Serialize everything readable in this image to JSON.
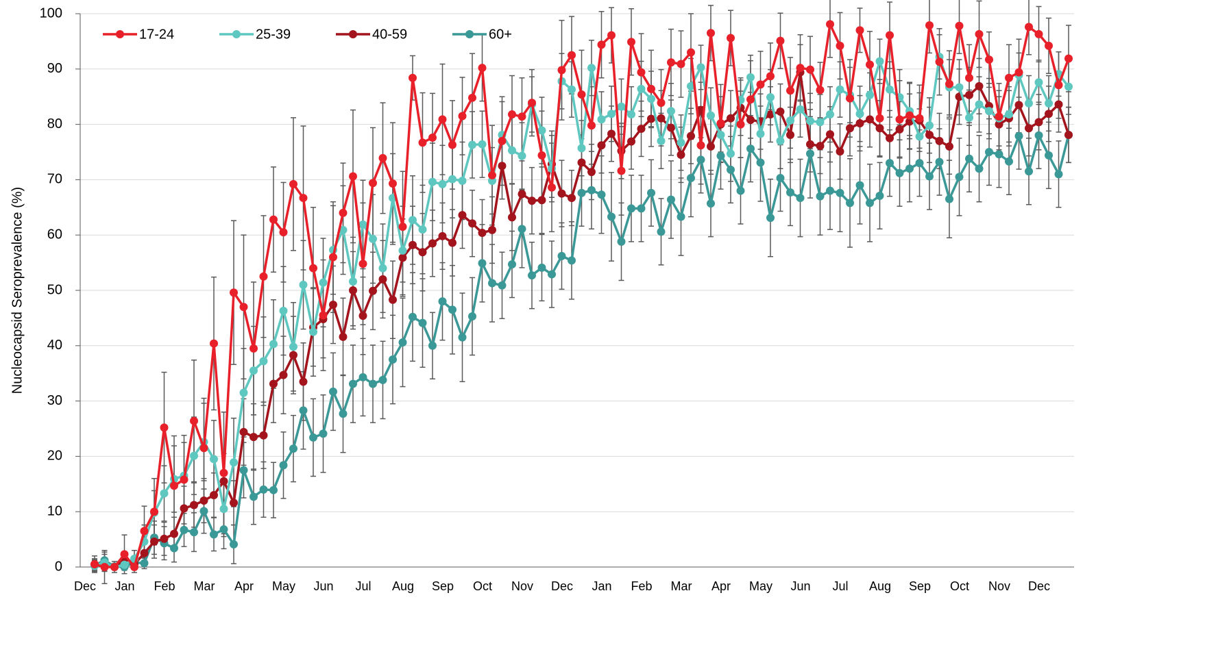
{
  "chart_data": {
    "type": "line",
    "ylabel": "Nucleocapsid Seroprevalence (%)",
    "ylim": [
      0,
      100
    ],
    "yticks": [
      0,
      10,
      20,
      30,
      40,
      50,
      60,
      70,
      80,
      90,
      100
    ],
    "grid": true,
    "legend": "top-left",
    "errorbar_color": "#595959",
    "categories": [
      "Dec",
      null,
      null,
      null,
      "Jan",
      null,
      null,
      null,
      "Feb",
      null,
      null,
      null,
      "Mar",
      null,
      null,
      null,
      "Apr",
      null,
      null,
      null,
      "May",
      null,
      null,
      null,
      "Jun",
      null,
      null,
      null,
      "Jul",
      null,
      null,
      null,
      "Aug",
      null,
      null,
      null,
      "Sep",
      null,
      null,
      null,
      "Oct",
      null,
      null,
      null,
      "Nov",
      null,
      null,
      null,
      "Dec",
      null,
      null,
      null,
      "Jan",
      null,
      null,
      null,
      "Feb",
      null,
      null,
      null,
      "Mar",
      null,
      null,
      null,
      "Apr",
      null,
      null,
      null,
      "May",
      null,
      null,
      null,
      "Jun",
      null,
      null,
      null,
      "Jul",
      null,
      null,
      null,
      "Aug",
      null,
      null,
      null,
      "Sep",
      null,
      null,
      null,
      "Oct",
      null,
      null,
      null,
      "Nov",
      null,
      null,
      null,
      "Dec",
      null,
      null
    ],
    "series": [
      {
        "name": "17-24",
        "color": "#e8202a",
        "values": [
          0.5,
          0,
          0,
          2.3,
          0,
          6.5,
          10,
          25.2,
          14.7,
          15.8,
          26.4,
          21.5,
          40.4,
          17,
          49.6,
          47,
          39.5,
          52.5,
          62.8,
          60.5,
          69.2,
          66.7,
          54,
          45.5,
          56,
          64,
          70.6,
          54.8,
          69.4,
          73.9,
          69.3,
          61.5,
          88.4,
          76.7,
          77.6,
          80.9,
          76.3,
          81.5,
          84.8,
          90.2,
          70.8,
          77,
          81.8,
          81.4,
          83.9,
          74.4,
          68.6,
          89.8,
          92.5,
          85.4,
          79.8,
          94.4,
          96.1,
          71.6,
          94.9,
          89.4,
          86.4,
          83.9,
          91.2,
          90.9,
          93,
          76.2,
          96.5,
          80.2,
          95.6,
          80,
          84.5,
          87.2,
          88.7,
          95.1,
          86.1,
          90.2,
          89.9,
          86.2,
          98.1,
          94.2,
          84.7,
          97,
          90.8,
          81.1,
          96.1,
          80.9,
          81.6,
          81.1,
          97.9,
          91.3,
          87.3,
          97.8,
          88.4,
          96.3,
          91.7,
          81.4,
          88.4,
          89.4,
          97.6,
          96.3,
          94.2,
          87.1,
          91.9
        ],
        "errors": [
          1.5,
          3,
          1,
          3.5,
          1,
          4.5,
          6,
          10,
          9,
          8,
          11,
          9,
          12,
          11,
          13,
          13,
          12,
          11,
          9.5,
          9,
          12,
          13,
          11,
          10,
          10,
          9,
          12,
          11,
          10,
          10,
          11,
          10,
          4,
          9,
          8,
          10,
          8,
          7,
          8,
          6,
          9,
          8,
          7,
          7,
          6,
          8,
          8,
          9,
          7,
          8,
          7,
          6,
          5,
          8,
          6,
          7,
          7,
          6,
          6,
          6,
          7,
          7,
          5,
          7,
          5,
          6,
          7,
          6,
          6,
          5,
          6,
          6,
          6,
          5,
          6,
          6,
          7,
          4,
          6,
          7,
          6,
          7,
          6,
          6,
          5,
          6,
          6,
          5,
          6,
          6,
          5,
          6,
          6,
          6,
          5,
          5,
          5,
          6,
          6
        ]
      },
      {
        "name": "25-39",
        "color": "#5ec8c0",
        "values": [
          0.2,
          0.8,
          0,
          0.4,
          1.5,
          4.6,
          9.8,
          13.3,
          15.9,
          16.5,
          20.1,
          22.6,
          19.5,
          10.5,
          18.9,
          31.5,
          35.5,
          37.2,
          40.3,
          46.3,
          39.8,
          51,
          42.5,
          51.4,
          57.3,
          60.9,
          51.6,
          61.9,
          59.3,
          54,
          66.7,
          57.2,
          62.7,
          61,
          69.6,
          69.2,
          70.1,
          69.8,
          76.3,
          76.4,
          69.8,
          78.1,
          75.3,
          74.3,
          83.6,
          78.9,
          72,
          87.8,
          86.3,
          75.7,
          90.2,
          80.9,
          81.9,
          83.2,
          81.8,
          86.4,
          84.6,
          77,
          82.4,
          76.7,
          86.9,
          90.3,
          81.6,
          78.1,
          74.7,
          84.4,
          88.5,
          78.3,
          84.9,
          77,
          80.7,
          82.7,
          80.6,
          80.4,
          81.8,
          86.3,
          85.3,
          81.9,
          85.3,
          91.4,
          86.3,
          84.9,
          82.4,
          77.8,
          79.8,
          92.2,
          86.7,
          86.7,
          81.2,
          83.6,
          82.4,
          81.1,
          81.8,
          88.9,
          83.8,
          87.6,
          83.8,
          89.1,
          86.8
        ],
        "errors": [
          1,
          1.5,
          0.5,
          1,
          1.5,
          3,
          4,
          5,
          6,
          6,
          7,
          7,
          7,
          5,
          8,
          8,
          8,
          8,
          8,
          8,
          8,
          8,
          8,
          8,
          8,
          8,
          8,
          8,
          8,
          8,
          8,
          8,
          8,
          8,
          7,
          7,
          7,
          7,
          6,
          6,
          6,
          6,
          6,
          6,
          5,
          6,
          6,
          5,
          5,
          5,
          5,
          5,
          5,
          5,
          5,
          5,
          5,
          5,
          5,
          5,
          5,
          4,
          5,
          5,
          5,
          4,
          4,
          5,
          5,
          5,
          5,
          5,
          5,
          5,
          5,
          5,
          5,
          5,
          4,
          4,
          5,
          5,
          5,
          5,
          5,
          4,
          5,
          5,
          5,
          5,
          5,
          5,
          5,
          4,
          5,
          4,
          5,
          4,
          5
        ]
      },
      {
        "name": "40-59",
        "color": "#a3141d",
        "values": [
          0.5,
          0.2,
          0,
          1.2,
          0.5,
          2.5,
          4.6,
          5.1,
          6,
          10.6,
          11.2,
          12,
          13,
          15.5,
          11.6,
          24.4,
          23.5,
          23.8,
          33.1,
          34.7,
          38.3,
          33.5,
          43.3,
          44.8,
          47.4,
          41.6,
          50,
          45.4,
          49.9,
          52,
          48.3,
          55.9,
          58.2,
          56.9,
          58.5,
          59.8,
          58.6,
          63.6,
          62.1,
          60.4,
          60.9,
          72.5,
          63.2,
          67.4,
          66.2,
          66.3,
          72.8,
          67.5,
          66.7,
          73.1,
          71.4,
          76.2,
          78.3,
          75.2,
          76.9,
          79.2,
          81,
          81.1,
          79.4,
          74.5,
          77.9,
          82.6,
          76,
          80,
          81.1,
          83,
          80.8,
          80.5,
          81.8,
          82.3,
          78.1,
          89.4,
          76.4,
          76.1,
          78.2,
          75.1,
          79.3,
          80.2,
          80.9,
          79.3,
          77.5,
          79.1,
          80.5,
          80.7,
          78.1,
          77,
          76,
          85,
          85.3,
          86.9,
          83.3,
          80,
          81.1,
          83.5,
          79.3,
          80.4,
          81.9,
          83.6,
          78.1
        ],
        "errors": [
          1,
          1,
          0.5,
          1,
          1,
          2,
          3,
          3,
          3,
          4,
          4,
          4,
          4,
          5,
          4,
          6,
          6,
          6,
          7,
          7,
          7,
          7,
          7,
          7,
          7,
          7,
          7,
          7,
          7,
          7,
          7,
          7,
          7,
          7,
          6,
          6,
          6,
          6,
          6,
          6,
          6,
          6,
          6,
          6,
          6,
          6,
          6,
          6,
          5,
          5,
          5,
          5,
          5,
          5,
          5,
          5,
          5,
          5,
          5,
          5,
          5,
          5,
          5,
          5,
          5,
          5,
          5,
          5,
          5,
          5,
          5,
          5,
          5,
          5,
          5,
          5,
          5,
          5,
          5,
          5,
          5,
          5,
          5,
          5,
          5,
          5,
          5,
          5,
          5,
          5,
          5,
          5,
          5,
          5,
          5,
          5,
          5,
          5,
          5
        ]
      },
      {
        "name": "60+",
        "color": "#3a9896",
        "values": [
          0.3,
          1.2,
          0.1,
          0,
          0.8,
          0.7,
          5.3,
          4.3,
          3.4,
          6.7,
          6.3,
          10.1,
          5.9,
          6.8,
          4.1,
          17.5,
          12.7,
          14,
          13.9,
          18.4,
          21.4,
          28.3,
          23.4,
          24.1,
          31.7,
          27.7,
          33.1,
          34.3,
          33.1,
          33.8,
          37.5,
          40.6,
          45.2,
          44.1,
          40,
          48,
          46.5,
          41.5,
          45.3,
          54.9,
          51.3,
          50.9,
          54.7,
          61.1,
          52.7,
          54.1,
          52.9,
          56.2,
          55.4,
          67.6,
          68.1,
          67.3,
          63.3,
          58.8,
          64.8,
          64.8,
          67.6,
          60.6,
          66.4,
          63.3,
          70.3,
          73.6,
          65.7,
          74.3,
          71.8,
          68,
          75.6,
          73.1,
          63.1,
          70.3,
          67.7,
          66.7,
          74.7,
          67,
          68,
          67.6,
          65.8,
          69,
          65.8,
          67.1,
          73,
          71.2,
          72,
          73,
          70.6,
          73.2,
          66.5,
          70.5,
          73.8,
          72,
          75,
          74.6,
          73.3,
          77.9,
          71.5,
          78,
          74.4,
          71,
          78.1
        ],
        "errors": [
          1,
          1.5,
          0.5,
          0.5,
          1,
          1,
          3,
          3,
          2.5,
          3,
          3.5,
          4,
          3,
          3.5,
          3.5,
          5,
          5,
          5,
          5,
          6,
          6,
          7,
          7,
          7,
          7,
          7,
          7,
          7,
          7,
          7,
          8,
          8,
          8,
          8,
          6,
          7,
          8,
          8,
          7,
          7,
          7,
          6,
          6,
          7,
          6,
          6,
          6,
          6,
          7,
          6,
          7,
          7,
          8,
          7,
          6,
          6,
          6,
          6,
          7,
          7,
          7,
          6,
          6,
          6,
          6,
          6,
          6,
          7,
          7,
          6,
          6,
          7,
          8,
          7,
          7,
          7,
          8,
          7,
          7,
          6,
          6,
          6,
          6,
          6,
          6,
          6,
          7,
          7,
          6,
          6,
          6,
          6,
          6,
          6,
          6,
          6,
          6,
          6,
          5
        ]
      }
    ]
  }
}
